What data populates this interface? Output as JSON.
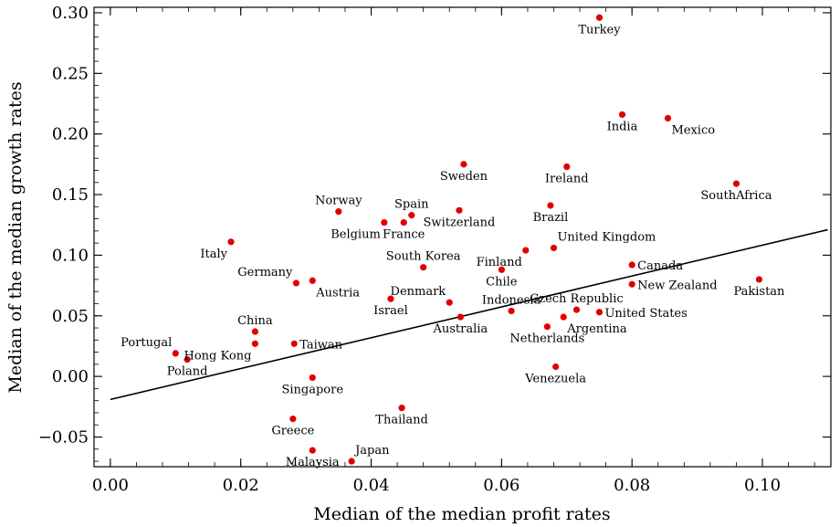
{
  "chart_data": {
    "type": "scatter",
    "title": "",
    "xlabel": "Median of the median profit rates",
    "ylabel": "Median of the median growth rates",
    "xlim": [
      -0.0025,
      0.1105
    ],
    "ylim": [
      -0.0745,
      0.3045
    ],
    "x_ticks": [
      0.0,
      0.02,
      0.04,
      0.06,
      0.08,
      0.1
    ],
    "x_tick_labels": [
      "0.00",
      "0.02",
      "0.04",
      "0.06",
      "0.08",
      "0.10"
    ],
    "y_ticks": [
      -0.05,
      0.0,
      0.05,
      0.1,
      0.15,
      0.2,
      0.25,
      0.3
    ],
    "y_tick_labels": [
      "−0.05",
      "0.00",
      "0.05",
      "0.10",
      "0.15",
      "0.20",
      "0.25",
      "0.30"
    ],
    "grid": false,
    "legend": "none",
    "point_color": "#e00000",
    "line_color": "#000000",
    "fit_line": {
      "x": [
        0.0,
        0.11
      ],
      "y": [
        -0.019,
        0.121
      ]
    },
    "points": [
      {
        "label": "Turkey",
        "x": 0.075,
        "y": 0.296,
        "label_pos": "below"
      },
      {
        "label": "India",
        "x": 0.0785,
        "y": 0.216,
        "label_pos": "below"
      },
      {
        "label": "Mexico",
        "x": 0.0855,
        "y": 0.213,
        "label_pos": "below-right"
      },
      {
        "label": "Sweden",
        "x": 0.0542,
        "y": 0.175,
        "label_pos": "below"
      },
      {
        "label": "Ireland",
        "x": 0.07,
        "y": 0.173,
        "label_pos": "below"
      },
      {
        "label": "SouthAfrica",
        "x": 0.096,
        "y": 0.159,
        "label_pos": "below"
      },
      {
        "label": "Brazil",
        "x": 0.0675,
        "y": 0.141,
        "label_pos": "below"
      },
      {
        "label": "Norway",
        "x": 0.035,
        "y": 0.136,
        "label_pos": "above"
      },
      {
        "label": "Switzerland",
        "x": 0.0535,
        "y": 0.137,
        "label_pos": "below"
      },
      {
        "label": "Spain",
        "x": 0.0462,
        "y": 0.133,
        "label_pos": "above"
      },
      {
        "label": "Belgium",
        "x": 0.042,
        "y": 0.127,
        "label_pos": "below-left"
      },
      {
        "label": "France",
        "x": 0.045,
        "y": 0.127,
        "label_pos": "below"
      },
      {
        "label": "Italy",
        "x": 0.0185,
        "y": 0.111,
        "label_pos": "below-left"
      },
      {
        "label": "United Kingdom",
        "x": 0.068,
        "y": 0.106,
        "label_pos": "above-right"
      },
      {
        "label": "Finland",
        "x": 0.0637,
        "y": 0.104,
        "label_pos": "below-left"
      },
      {
        "label": "Canada",
        "x": 0.08,
        "y": 0.092,
        "label_pos": "right"
      },
      {
        "label": "South Korea",
        "x": 0.048,
        "y": 0.09,
        "label_pos": "above"
      },
      {
        "label": "Chile",
        "x": 0.06,
        "y": 0.088,
        "label_pos": "below"
      },
      {
        "label": "Pakistan",
        "x": 0.0995,
        "y": 0.08,
        "label_pos": "below"
      },
      {
        "label": "Austria",
        "x": 0.031,
        "y": 0.079,
        "label_pos": "below-right"
      },
      {
        "label": "Germany",
        "x": 0.0285,
        "y": 0.077,
        "label_pos": "above-left"
      },
      {
        "label": "New Zealand",
        "x": 0.08,
        "y": 0.076,
        "label_pos": "right"
      },
      {
        "label": "Israel",
        "x": 0.043,
        "y": 0.064,
        "label_pos": "below"
      },
      {
        "label": "Denmark",
        "x": 0.052,
        "y": 0.061,
        "label_pos": "above-left"
      },
      {
        "label": "Czech Republic",
        "x": 0.0715,
        "y": 0.055,
        "label_pos": "above"
      },
      {
        "label": "Indonesia",
        "x": 0.0615,
        "y": 0.054,
        "label_pos": "above"
      },
      {
        "label": "United States",
        "x": 0.075,
        "y": 0.053,
        "label_pos": "right"
      },
      {
        "label": "Australia",
        "x": 0.0537,
        "y": 0.049,
        "label_pos": "below"
      },
      {
        "label": "Argentina",
        "x": 0.0695,
        "y": 0.049,
        "label_pos": "below-right"
      },
      {
        "label": "Netherlands",
        "x": 0.067,
        "y": 0.041,
        "label_pos": "below"
      },
      {
        "label": "China",
        "x": 0.0222,
        "y": 0.037,
        "label_pos": "above"
      },
      {
        "label": "Taiwan",
        "x": 0.0282,
        "y": 0.027,
        "label_pos": "right"
      },
      {
        "label": "Hong Kong",
        "x": 0.0222,
        "y": 0.027,
        "label_pos": "below-left"
      },
      {
        "label": "Portugal",
        "x": 0.01,
        "y": 0.019,
        "label_pos": "above-left"
      },
      {
        "label": "Poland",
        "x": 0.0118,
        "y": 0.014,
        "label_pos": "below"
      },
      {
        "label": "Venezuela",
        "x": 0.0683,
        "y": 0.008,
        "label_pos": "below"
      },
      {
        "label": "Singapore",
        "x": 0.031,
        "y": -0.001,
        "label_pos": "below"
      },
      {
        "label": "Thailand",
        "x": 0.0447,
        "y": -0.026,
        "label_pos": "below"
      },
      {
        "label": "Greece",
        "x": 0.028,
        "y": -0.035,
        "label_pos": "below"
      },
      {
        "label": "Malaysia",
        "x": 0.031,
        "y": -0.061,
        "label_pos": "below"
      },
      {
        "label": "Japan",
        "x": 0.037,
        "y": -0.07,
        "label_pos": "above-right"
      }
    ]
  }
}
